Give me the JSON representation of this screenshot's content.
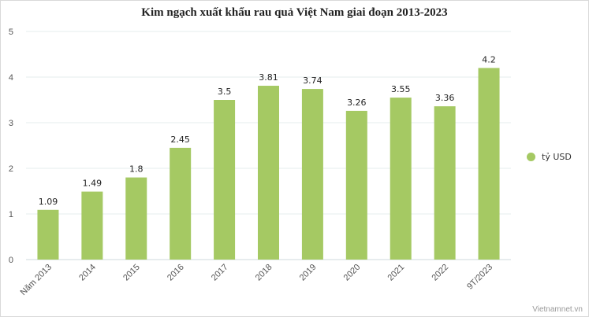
{
  "chart_data": {
    "type": "bar",
    "title": "Kim ngạch xuất khẩu rau quả Việt Nam giai đoạn 2013-2023",
    "categories": [
      "Năm 2013",
      "2014",
      "2015",
      "2016",
      "2017",
      "2018",
      "2019",
      "2020",
      "2021",
      "2022",
      "9T/2023"
    ],
    "series": [
      {
        "name": "tỷ USD",
        "values": [
          1.09,
          1.49,
          1.8,
          2.45,
          3.5,
          3.81,
          3.74,
          3.26,
          3.55,
          3.36,
          4.2
        ]
      }
    ],
    "ylim": [
      0,
      5
    ],
    "yticks": [
      "0",
      "1",
      "2",
      "3",
      "4",
      "5"
    ],
    "data_labels": [
      "1.09",
      "1.49",
      "1.8",
      "2.45",
      "3.5",
      "3.81",
      "3.74",
      "3.26",
      "3.55",
      "3.36",
      "4.2"
    ],
    "grid": true,
    "legend_position": "right",
    "bar_color": "#a5c963"
  },
  "watermark": "Vietnamnet.vn"
}
